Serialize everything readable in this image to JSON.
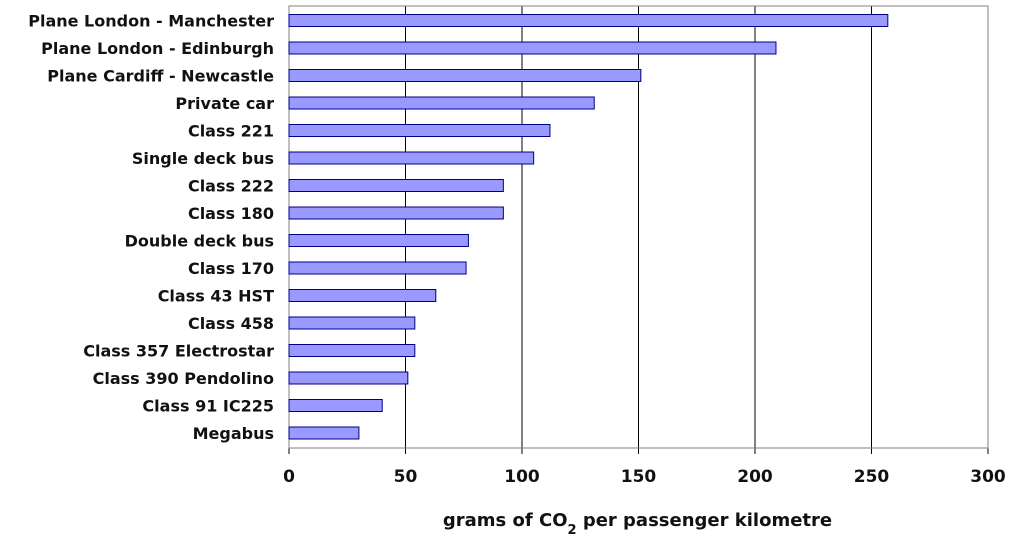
{
  "chart_data": {
    "type": "bar",
    "orientation": "horizontal",
    "categories": [
      "Plane London - Manchester",
      "Plane London - Edinburgh",
      "Plane Cardiff - Newcastle",
      "Private car",
      "Class 221",
      "Single deck bus",
      "Class 222",
      "Class 180",
      "Double deck bus",
      "Class 170",
      "Class 43 HST",
      "Class 458",
      "Class 357 Electrostar",
      "Class 390 Pendolino",
      "Class 91 IC225",
      "Megabus"
    ],
    "values": [
      257,
      209,
      151,
      131,
      112,
      105,
      92,
      92,
      77,
      76,
      63,
      54,
      54,
      51,
      40,
      30
    ],
    "xlabel": {
      "prefix": "grams of CO",
      "subscript": "2",
      "suffix": " per passenger kilometre"
    },
    "ylabel": "",
    "title": "",
    "xlim": [
      0,
      300
    ],
    "xticks": [
      0,
      50,
      100,
      150,
      200,
      250,
      300
    ],
    "grid": "vertical",
    "legend": "none",
    "colors": {
      "bar_fill": "#9999ff",
      "bar_stroke": "#000080",
      "grid": "#000000",
      "plot_border": "#808080"
    }
  }
}
